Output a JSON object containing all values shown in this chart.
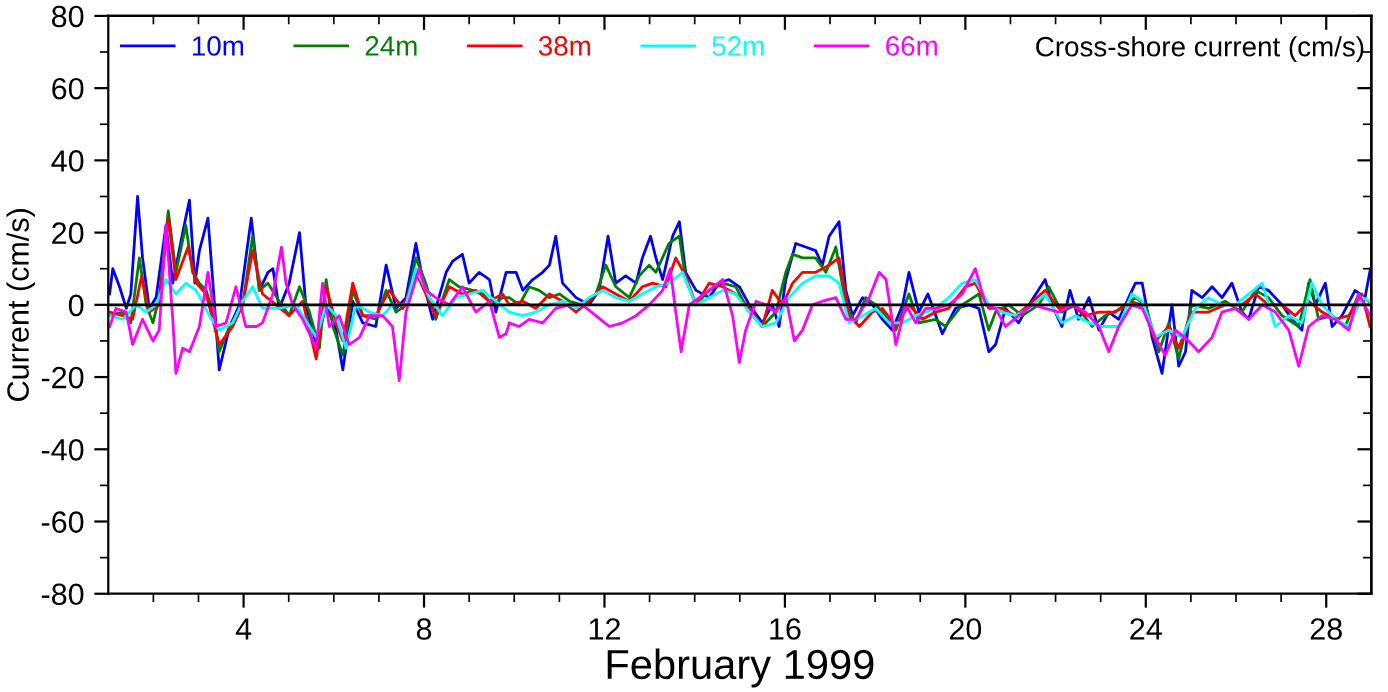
{
  "chart_data": {
    "type": "line",
    "title": "Cross-shore current (cm/s)",
    "xlabel": "February 1999",
    "ylabel": "Current (cm/s)",
    "xlim": [
      1,
      29
    ],
    "ylim": [
      -80,
      80
    ],
    "xticks": [
      {
        "value": 2,
        "label": null
      },
      {
        "value": 3,
        "label": null
      },
      4,
      {
        "value": 5,
        "label": null
      },
      {
        "value": 6,
        "label": null
      },
      {
        "value": 7,
        "label": null
      },
      8,
      {
        "value": 9,
        "label": null
      },
      {
        "value": 10,
        "label": null
      },
      {
        "value": 11,
        "label": null
      },
      12,
      {
        "value": 13,
        "label": null
      },
      {
        "value": 14,
        "label": null
      },
      {
        "value": 15,
        "label": null
      },
      16,
      {
        "value": 17,
        "label": null
      },
      {
        "value": 18,
        "label": null
      },
      {
        "value": 19,
        "label": null
      },
      20,
      {
        "value": 21,
        "label": null
      },
      {
        "value": 22,
        "label": null
      },
      {
        "value": 23,
        "label": null
      },
      24,
      {
        "value": 25,
        "label": null
      },
      {
        "value": 26,
        "label": null
      },
      {
        "value": 27,
        "label": null
      },
      28
    ],
    "yticks": [
      -80,
      {
        "value": -70,
        "label": null
      },
      -60,
      {
        "value": -50,
        "label": null
      },
      -40,
      {
        "value": -30,
        "label": null
      },
      -20,
      {
        "value": -10,
        "label": null
      },
      0,
      {
        "value": 10,
        "label": null
      },
      20,
      {
        "value": 30,
        "label": null
      },
      40,
      {
        "value": 50,
        "label": null
      },
      60,
      {
        "value": 70,
        "label": null
      },
      80
    ],
    "grid": false,
    "legend": "top left",
    "marker": "none",
    "line_style": "solid",
    "ref_lines": [
      {
        "axis": "y",
        "value": 0,
        "color": "#000000"
      }
    ],
    "series": [
      {
        "name": "10m",
        "color": "#0000ff",
        "x": [
          1.03,
          1.1,
          1.25,
          1.4,
          1.5,
          1.65,
          1.76,
          1.91,
          2.06,
          2.28,
          2.43,
          2.65,
          2.8,
          2.92,
          3.02,
          3.21,
          3.32,
          3.46,
          3.69,
          3.91,
          4.17,
          4.35,
          4.54,
          4.65,
          4.79,
          5.01,
          5.24,
          5.38,
          5.61,
          5.83,
          6.05,
          6.2,
          6.42,
          6.64,
          6.93,
          7.16,
          7.38,
          7.6,
          7.82,
          7.97,
          8.19,
          8.49,
          8.63,
          8.85,
          9.0,
          9.22,
          9.45,
          9.59,
          9.82,
          10.04,
          10.19,
          10.41,
          10.63,
          10.78,
          10.92,
          11.07,
          11.37,
          11.66,
          11.88,
          12.08,
          12.25,
          12.47,
          12.7,
          12.84,
          13.02,
          13.14,
          13.29,
          13.51,
          13.66,
          13.8,
          14.03,
          14.32,
          14.54,
          14.76,
          14.99,
          15.21,
          15.5,
          15.72,
          15.87,
          16.02,
          16.24,
          16.46,
          16.68,
          16.83,
          16.98,
          17.2,
          17.35,
          17.5,
          17.72,
          17.94,
          18.16,
          18.38,
          18.61,
          18.75,
          18.97,
          19.17,
          19.49,
          19.78,
          20.08,
          20.3,
          20.52,
          20.67,
          20.89,
          21.18,
          21.41,
          21.77,
          21.92,
          22.14,
          22.32,
          22.51,
          22.74,
          22.96,
          23.18,
          23.4,
          23.62,
          23.77,
          23.92,
          24.14,
          24.36,
          24.58,
          24.73,
          24.88,
          25.02,
          25.25,
          25.47,
          25.69,
          25.91,
          26.13,
          26.28,
          26.5,
          26.72,
          27.02,
          27.24,
          27.46,
          27.61,
          27.76,
          27.98,
          28.13,
          28.35,
          28.64,
          28.86,
          28.98
        ],
        "values": [
          3,
          10,
          5,
          -1,
          3,
          30,
          13,
          -1,
          2,
          22,
          6,
          20,
          29,
          6,
          15,
          24,
          6,
          -18,
          -6,
          0,
          24,
          4,
          9,
          10,
          -1,
          6,
          20,
          0,
          -11,
          0,
          -7,
          -18,
          1,
          -5,
          -6,
          11,
          -1,
          2,
          17,
          7,
          -4,
          9,
          12,
          14,
          6,
          9,
          7,
          -2,
          9,
          9,
          4,
          7,
          9,
          11,
          19,
          6,
          2,
          0,
          4,
          19,
          6,
          8,
          6,
          13,
          19,
          13,
          7,
          19,
          23,
          9,
          4,
          2,
          6,
          7,
          5,
          0,
          -5,
          0,
          -6,
          7,
          17,
          16,
          15,
          11,
          19,
          23,
          4,
          -3,
          2,
          0,
          -4,
          -7,
          0,
          9,
          -2,
          3,
          -8,
          -1,
          0,
          -1,
          -13,
          -11,
          -1,
          -5,
          0,
          7,
          0,
          -6,
          4,
          -4,
          2,
          -7,
          -2,
          -4,
          2,
          6,
          6,
          -9,
          -19,
          0,
          -17,
          -13,
          4,
          2,
          5,
          2,
          6,
          -2,
          -4,
          5,
          4,
          0,
          -4,
          -7,
          6,
          0,
          6,
          -6,
          -3,
          4,
          2,
          10
        ]
      },
      {
        "name": "24m",
        "color": "#008000",
        "x": [
          1.03,
          1.32,
          1.5,
          1.69,
          1.84,
          1.99,
          2.13,
          2.33,
          2.5,
          2.72,
          2.87,
          3.02,
          3.17,
          3.32,
          3.46,
          3.69,
          3.98,
          4.2,
          4.35,
          4.54,
          4.79,
          5.01,
          5.24,
          5.46,
          5.68,
          5.83,
          5.98,
          6.2,
          6.42,
          6.64,
          6.93,
          7.16,
          7.38,
          7.6,
          7.82,
          8.04,
          8.26,
          8.56,
          8.78,
          9.08,
          9.3,
          9.52,
          9.74,
          9.89,
          10.11,
          10.33,
          10.55,
          10.78,
          11.0,
          11.22,
          11.51,
          11.81,
          12.03,
          12.25,
          12.55,
          12.77,
          12.99,
          13.14,
          13.43,
          13.66,
          13.8,
          14.03,
          14.32,
          14.62,
          14.91,
          15.21,
          15.5,
          15.8,
          16.02,
          16.17,
          16.39,
          16.68,
          16.91,
          17.13,
          17.35,
          17.57,
          17.79,
          18.01,
          18.24,
          18.46,
          18.75,
          18.97,
          19.34,
          19.56,
          19.93,
          20.3,
          20.52,
          20.67,
          20.96,
          21.26,
          21.63,
          21.85,
          22.14,
          22.44,
          22.81,
          23.1,
          23.47,
          23.77,
          23.99,
          24.29,
          24.51,
          24.73,
          25.02,
          25.39,
          25.76,
          26.13,
          26.43,
          26.72,
          27.02,
          27.39,
          27.64,
          27.83,
          28.13,
          28.42,
          28.72,
          28.94
        ],
        "values": [
          -3,
          -2,
          -5,
          13,
          0,
          -5,
          2,
          26,
          9,
          22,
          9,
          6,
          4,
          -2,
          -13,
          -6,
          0,
          19,
          4,
          6,
          1,
          -3,
          5,
          -2,
          -12,
          7,
          -6,
          -14,
          4,
          -3,
          -4,
          4,
          -2,
          0,
          13,
          6,
          -4,
          7,
          5,
          4,
          3,
          0,
          2,
          2,
          0,
          5,
          4,
          2,
          3,
          1,
          0,
          3,
          11,
          5,
          2,
          8,
          11,
          9,
          17,
          19,
          7,
          0,
          4,
          6,
          5,
          -2,
          -6,
          -2,
          9,
          14,
          13,
          13,
          9,
          16,
          0,
          -5,
          2,
          0,
          -3,
          -7,
          3,
          -5,
          -4,
          -6,
          0,
          3,
          -7,
          -2,
          0,
          -3,
          0,
          5,
          -2,
          0,
          -6,
          -3,
          -1,
          2,
          0,
          -13,
          -5,
          -15,
          0,
          -1,
          1,
          -2,
          4,
          2,
          -3,
          -6,
          7,
          -4,
          -3,
          -6,
          3,
          1
        ]
      },
      {
        "name": "38m",
        "color": "#ff0000",
        "x": [
          1.03,
          1.32,
          1.54,
          1.74,
          1.91,
          2.13,
          2.33,
          2.5,
          2.77,
          2.95,
          3.17,
          3.46,
          3.76,
          3.98,
          4.2,
          4.42,
          4.72,
          5.01,
          5.31,
          5.61,
          5.83,
          6.05,
          6.2,
          6.42,
          6.64,
          6.93,
          7.23,
          7.53,
          7.82,
          8.04,
          8.26,
          8.56,
          8.85,
          9.15,
          9.45,
          9.74,
          9.89,
          10.19,
          10.48,
          10.78,
          11.07,
          11.37,
          11.66,
          11.96,
          12.25,
          12.55,
          12.84,
          13.07,
          13.36,
          13.58,
          13.8,
          14.03,
          14.32,
          14.62,
          14.91,
          15.21,
          15.5,
          15.72,
          15.95,
          16.17,
          16.39,
          16.68,
          16.98,
          17.2,
          17.42,
          17.65,
          17.94,
          18.16,
          18.46,
          18.75,
          19.05,
          19.34,
          19.63,
          20.0,
          20.22,
          20.52,
          20.81,
          21.11,
          21.41,
          21.77,
          22.07,
          22.37,
          22.66,
          22.96,
          23.33,
          23.62,
          23.92,
          24.21,
          24.51,
          24.73,
          25.02,
          25.39,
          25.76,
          26.13,
          26.43,
          26.72,
          27.02,
          27.31,
          27.61,
          27.91,
          28.2,
          28.5,
          28.79,
          28.97
        ],
        "values": [
          -2,
          -3,
          -4,
          8,
          -2,
          0,
          24,
          7,
          16,
          6,
          3,
          -11,
          -6,
          0,
          15,
          3,
          0,
          -3,
          1,
          -15,
          5,
          -5,
          -10,
          6,
          -3,
          -3,
          4,
          -1,
          9,
          3,
          -3,
          5,
          3,
          4,
          1,
          3,
          0,
          1,
          -1,
          3,
          1,
          -2,
          1,
          5,
          3,
          1,
          5,
          6,
          5,
          13,
          8,
          0,
          6,
          5,
          3,
          -1,
          -6,
          4,
          0,
          6,
          9,
          9,
          11,
          13,
          -3,
          -6,
          -2,
          -1,
          -6,
          0,
          -4,
          -2,
          -1,
          5,
          6,
          -1,
          -1,
          -3,
          0,
          4,
          -1,
          0,
          -3,
          -2,
          -2,
          1,
          0,
          -10,
          -6,
          -12,
          -2,
          -2,
          0,
          0,
          3,
          0,
          0,
          -3,
          1,
          -2,
          -4,
          -3,
          3,
          -6
        ]
      },
      {
        "name": "52m",
        "color": "#00ffff",
        "x": [
          1.03,
          1.32,
          1.62,
          1.84,
          2.06,
          2.28,
          2.5,
          2.72,
          2.95,
          3.24,
          3.46,
          3.76,
          3.98,
          4.2,
          4.42,
          4.79,
          5.16,
          5.61,
          5.83,
          6.05,
          6.27,
          6.49,
          6.79,
          7.08,
          7.3,
          7.6,
          7.82,
          8.12,
          8.41,
          8.71,
          9.0,
          9.3,
          9.59,
          9.89,
          10.19,
          10.48,
          10.78,
          11.07,
          11.37,
          11.66,
          11.96,
          12.25,
          12.55,
          12.84,
          13.14,
          13.43,
          13.73,
          14.03,
          14.32,
          14.62,
          14.91,
          15.21,
          15.5,
          15.8,
          16.09,
          16.39,
          16.68,
          16.98,
          17.2,
          17.42,
          17.72,
          18.01,
          18.31,
          18.61,
          18.9,
          19.34,
          19.63,
          19.93,
          20.22,
          20.52,
          20.81,
          21.11,
          21.41,
          21.77,
          22.14,
          22.44,
          22.74,
          23.03,
          23.4,
          23.69,
          23.92,
          24.21,
          24.51,
          24.8,
          25.1,
          25.39,
          25.69,
          25.98,
          26.28,
          26.58,
          26.87,
          27.17,
          27.46,
          27.68,
          27.91,
          28.2,
          28.5,
          28.79,
          28.97
        ],
        "values": [
          -3,
          -4,
          0,
          -2,
          0,
          7,
          3,
          6,
          4,
          -3,
          -7,
          -5,
          1,
          5,
          -1,
          -1,
          0,
          -9,
          0,
          -3,
          -12,
          0,
          -2,
          -3,
          0,
          0,
          10,
          2,
          -3,
          2,
          3,
          4,
          1,
          -2,
          -3,
          -2,
          0,
          1,
          -1,
          2,
          4,
          2,
          1,
          3,
          5,
          6,
          9,
          0,
          2,
          4,
          3,
          -2,
          -6,
          -5,
          2,
          6,
          8,
          8,
          6,
          -5,
          -3,
          -1,
          -5,
          -5,
          -3,
          -1,
          2,
          6,
          7,
          0,
          -2,
          -3,
          -1,
          3,
          -5,
          -3,
          -5,
          -6,
          -6,
          3,
          1,
          -9,
          -7,
          -9,
          -1,
          2,
          0,
          0,
          3,
          6,
          -6,
          -3,
          -5,
          6,
          0,
          -4,
          -6,
          2,
          1
        ]
      },
      {
        "name": "66m",
        "color": "#ff00ff",
        "x": [
          1.03,
          1.17,
          1.4,
          1.54,
          1.76,
          1.99,
          2.13,
          2.28,
          2.43,
          2.5,
          2.65,
          2.8,
          3.02,
          3.21,
          3.39,
          3.61,
          3.83,
          4.05,
          4.28,
          4.42,
          4.65,
          4.84,
          4.94,
          5.09,
          5.31,
          5.61,
          5.75,
          5.9,
          6.12,
          6.34,
          6.57,
          6.79,
          7.08,
          7.3,
          7.45,
          7.6,
          7.89,
          8.04,
          8.26,
          8.56,
          8.85,
          9.15,
          9.45,
          9.67,
          9.82,
          9.89,
          10.11,
          10.33,
          10.63,
          10.92,
          11.22,
          11.51,
          11.81,
          12.11,
          12.4,
          12.7,
          12.99,
          13.29,
          13.46,
          13.58,
          13.7,
          13.88,
          14.1,
          14.32,
          14.62,
          14.84,
          14.99,
          15.13,
          15.36,
          15.58,
          15.8,
          16.02,
          16.21,
          16.39,
          16.61,
          16.83,
          17.13,
          17.35,
          17.57,
          17.87,
          18.09,
          18.24,
          18.46,
          18.68,
          18.9,
          19.12,
          19.34,
          19.63,
          19.93,
          20.22,
          20.45,
          20.67,
          20.89,
          21.18,
          21.48,
          21.77,
          22.07,
          22.37,
          22.66,
          22.96,
          23.18,
          23.4,
          23.69,
          23.92,
          24.21,
          24.43,
          24.66,
          24.95,
          25.17,
          25.47,
          25.69,
          25.98,
          26.28,
          26.58,
          26.87,
          27.17,
          27.39,
          27.61,
          27.91,
          28.2,
          28.5,
          28.72,
          28.97
        ],
        "values": [
          -6,
          -1,
          -2,
          -11,
          -4,
          -10,
          -7,
          22,
          -4,
          -19,
          -12,
          -13,
          -6,
          9,
          -6,
          -5,
          5,
          -6,
          -6,
          -5,
          3,
          16,
          6,
          0,
          -4,
          -12,
          6,
          -6,
          -3,
          -11,
          -9,
          -3,
          -3,
          -6,
          -21,
          -2,
          10,
          4,
          2,
          0,
          5,
          -2,
          1,
          -9,
          -8,
          -5,
          -6,
          -4,
          -5,
          -1,
          0,
          0,
          -3,
          -6,
          -5,
          -3,
          0,
          4,
          10,
          -2,
          -13,
          0,
          2,
          4,
          7,
          -3,
          -16,
          -7,
          1,
          0,
          -2,
          2,
          -10,
          -7,
          0,
          1,
          2,
          -4,
          -4,
          2,
          9,
          7,
          -11,
          0,
          -5,
          -1,
          -1,
          0,
          3,
          10,
          0,
          -1,
          -6,
          -3,
          0,
          -1,
          -2,
          0,
          -2,
          -6,
          -13,
          -6,
          0,
          -1,
          -9,
          -14,
          -7,
          -10,
          -13,
          -9,
          -2,
          -1,
          -4,
          0,
          -2,
          -7,
          -17,
          -6,
          -3,
          -4,
          -7,
          3,
          -3
        ]
      }
    ]
  }
}
